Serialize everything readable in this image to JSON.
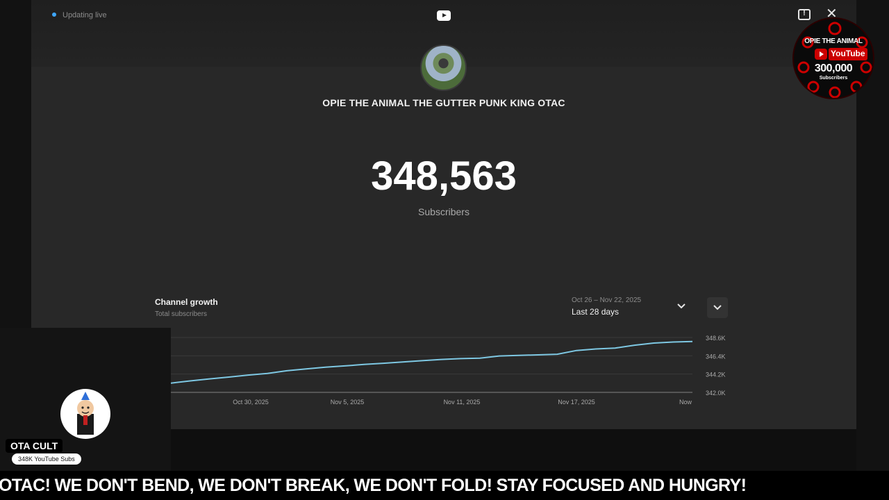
{
  "status": {
    "live_text": "Updating live"
  },
  "channel": {
    "name": "OPIE THE ANIMAL THE GUTTER PUNK KING OTAC",
    "subscriber_count": "348,563",
    "subscriber_label": "Subscribers"
  },
  "growth": {
    "title": "Channel growth",
    "subtitle": "Total subscribers",
    "date_range": "Oct 26 – Nov 22, 2025",
    "period": "Last 28 days"
  },
  "chart_data": {
    "type": "line",
    "x_tick_labels": [
      "Oct 30, 2025",
      "Nov 5, 2025",
      "Nov 11, 2025",
      "Nov 17, 2025",
      "Now"
    ],
    "y_tick_labels": [
      "348.6K",
      "346.4K",
      "344.2K",
      "342.0K"
    ],
    "ylim": [
      342000,
      348600
    ],
    "grid": true,
    "series": [
      {
        "color": "#7ec8e3",
        "values": [
          343110,
          343380,
          343620,
          343840,
          344080,
          344270,
          344600,
          344820,
          345030,
          345180,
          345360,
          345500,
          345660,
          345810,
          345960,
          346060,
          346110,
          346380,
          346450,
          346510,
          346590,
          347040,
          347220,
          347330,
          347670,
          347930,
          348060,
          348120
        ]
      }
    ]
  },
  "host": {
    "name": "OTA CULT",
    "subs": "348K YouTube Subs"
  },
  "badge": {
    "channel": "OPIE THE ANIMAL",
    "platform": "YouTube",
    "count": "300,000",
    "label": "Subscribers"
  },
  "ticker": {
    "text": "OTAC! WE DON'T BEND, WE DON'T BREAK, WE DON'T FOLD! STAY FOCUSED AND HUNGRY!"
  },
  "colors": {
    "accent": "#3ea6ff",
    "line": "#7ec8e3",
    "badge_red": "#cc0000"
  },
  "icons": [
    "live-dot-icon",
    "youtube-logo-icon",
    "feedback-icon",
    "close-icon",
    "chevron-down-icon"
  ]
}
